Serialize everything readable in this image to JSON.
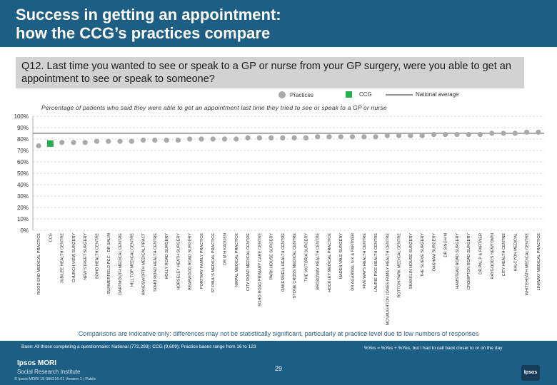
{
  "header": {
    "title": "Success in getting an appointment:\nhow the CCG’s practices compare"
  },
  "question": "Q12. Last time you wanted to see or speak to a GP or nurse from your GP surgery, were you able to get an appointment to see or speak to someone?",
  "legend": {
    "practices": "Practices",
    "ccg": "CCG",
    "national": "National average"
  },
  "subtitle": "Percentage of patients who said they were able to get an appointment last time they tried to see or speak to a GP or nurse",
  "colors": {
    "practice": "#a9a9a9",
    "ccg": "#22b14c",
    "national": "#8f8f8f",
    "accent": "#1d5e85"
  },
  "chart_data": {
    "type": "scatter",
    "ylim": [
      0,
      100
    ],
    "y_ticks": [
      "0%",
      "10%",
      "20%",
      "30%",
      "40%",
      "50%",
      "60%",
      "70%",
      "80%",
      "90%",
      "100%"
    ],
    "national_average": 85,
    "categories": [
      "ROOD END MEDICAL PRACTICE",
      "CCG",
      "JUBILEE HEALTH CENTRE",
      "CHURCH VIEW SURGERY",
      "NEW STREET SURGERY",
      "SOHO HEALTH CENTRE",
      "SUMMERFIELD PCC - DR SALIM",
      "DARTMOUTH MEDICAL CENTRE",
      "HILL TOP MEDICAL CENTRE",
      "HANDSWORTH MEDICAL PRACT",
      "SOHO ROAD HEALTH CENTRE",
      "HOLLY ROAD SURGERY",
      "HORSELEY HEATH SURGERY",
      "BEARWOOD ROAD SURGERY",
      "PORTWAY FAMILY PRACTICE",
      "ST PAUL'S MEDICAL PRACTICE",
      "DR M H KADUEN",
      "NIRPAL MEDICAL PRACTICE",
      "CITY ROAD MEDICAL CENTRE",
      "SOHO ROAD PRIMARY CARE CENTRE",
      "PARK HOUSE SURGERY",
      "OAKESWELL HEALTH CENTRE",
      "STONE CROSS MEDICAL CENTRE",
      "THE VICTORIA SURGERY",
      "BROADWAY HEALTH CENTRE",
      "HOCKLEY MEDICAL PRACTICE",
      "HADEN VALE SURGERY",
      "DR AGARWAL N K & PARTNER",
      "FIVE WAYS HEALTH CENTRE",
      "LAURIE PIKE HEALTH CENTRE",
      "MCNAUGHTON JONES FAMILY HEALTH CENTRE",
      "ROTTON PARK MEDICAL CENTRE",
      "SHAKKLIN HOUSE SURGERY",
      "THE SLIEVE SURGERY",
      "OAKHAM SURGERY",
      "DR SINGH M",
      "HAMSTEAD ROAD SURGERY",
      "CROMPTON ROAD SURGERY",
      "DR PAL P & PARTNER",
      "RAYGOOD'S NEWTOWN",
      "CITY HEALTH CENTRE",
      "HALCYON MEDICAL",
      "WHITEHEATH MEDICAL CENTRE",
      "LINKWAY MEDICAL PRACTICE"
    ],
    "values": [
      74,
      76,
      77,
      77,
      77,
      78,
      78,
      78,
      78,
      79,
      79,
      79,
      79,
      80,
      80,
      80,
      80,
      80,
      81,
      81,
      81,
      81,
      81,
      81,
      82,
      82,
      82,
      82,
      82,
      82,
      83,
      83,
      83,
      83,
      84,
      84,
      84,
      84,
      84,
      85,
      85,
      85,
      86,
      86
    ],
    "ccg_index": 1
  },
  "notes": {
    "comparison": "Comparisons are indicative only: differences may not be statistically significant, particularly at practice level due to low numbers of responses",
    "base": "Base: All those completing a questionnaire: National (772,293); CCG (9,609); Practice bases range from 16 to 123",
    "key": "%Yes = %Yes + %Yes, but I had to call back closer to or on the day"
  },
  "footer": {
    "page": "29",
    "brand": "Ipsos MORI",
    "brand_sub": "Social Research Institute",
    "copyright": "© Ipsos MORI     15-080216-01 Version 1 | Public",
    "logo": "Ipsos"
  }
}
